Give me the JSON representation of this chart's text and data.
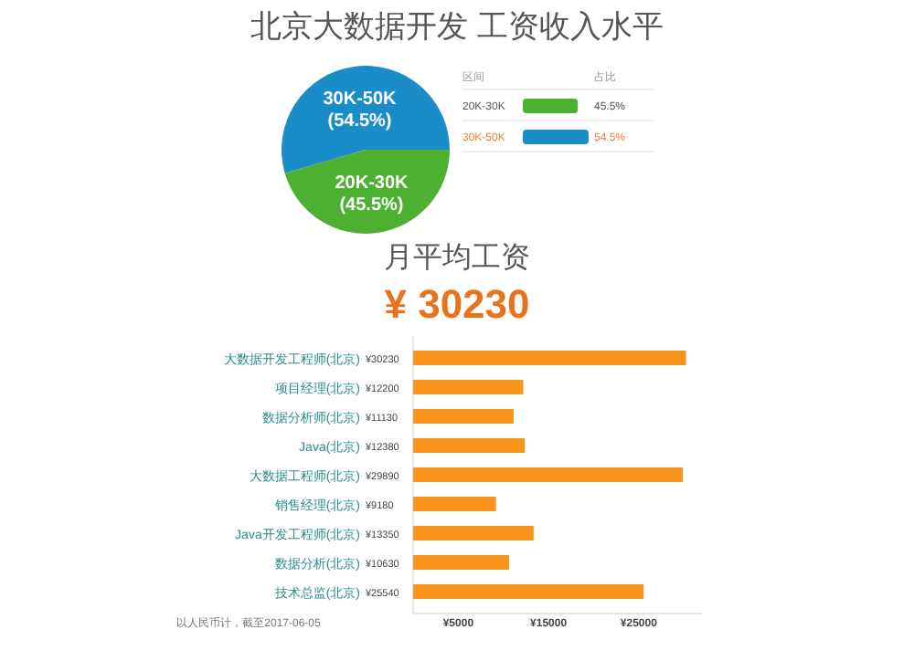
{
  "chart_data": [
    {
      "type": "pie",
      "title": "北京大数据开发 工资收入水平",
      "categories": [
        "20K-30K",
        "30K-50K"
      ],
      "values": [
        45.5,
        54.5
      ],
      "colors": [
        "#4cb030",
        "#1a8cc8"
      ],
      "value_labels": [
        "(45.5%)",
        "(54.5%)"
      ],
      "annotations": [
        "区间",
        "占比",
        "45.5%",
        "54.5%"
      ]
    },
    {
      "type": "bar",
      "orientation": "horizontal",
      "title": "月平均工资",
      "subtitle": "¥ 30230",
      "categories": [
        "大数据开发工程师(北京)",
        "项目经理(北京)",
        "数据分析师(北京)",
        "Java(北京)",
        "大数据工程师(北京)",
        "销售经理(北京)",
        "Java开发工程师(北京)",
        "数据分析(北京)",
        "技术总监(北京)"
      ],
      "values": [
        30230,
        12200,
        11130,
        12380,
        29890,
        9180,
        13350,
        10630,
        25540
      ],
      "value_labels": [
        "¥30230",
        "¥12200",
        "¥11130",
        "¥12380",
        "¥29890",
        "¥9180",
        "¥13350",
        "¥10630",
        "¥25540"
      ],
      "color": "#f7941d",
      "xlim": [
        0,
        32000
      ],
      "xticks": [
        {
          "value": 5000,
          "label": "¥5000"
        },
        {
          "value": 15000,
          "label": "¥15000"
        },
        {
          "value": 25000,
          "label": "¥25000"
        }
      ],
      "annotations": [
        "以人民币计，截至2017-06-05"
      ]
    }
  ]
}
